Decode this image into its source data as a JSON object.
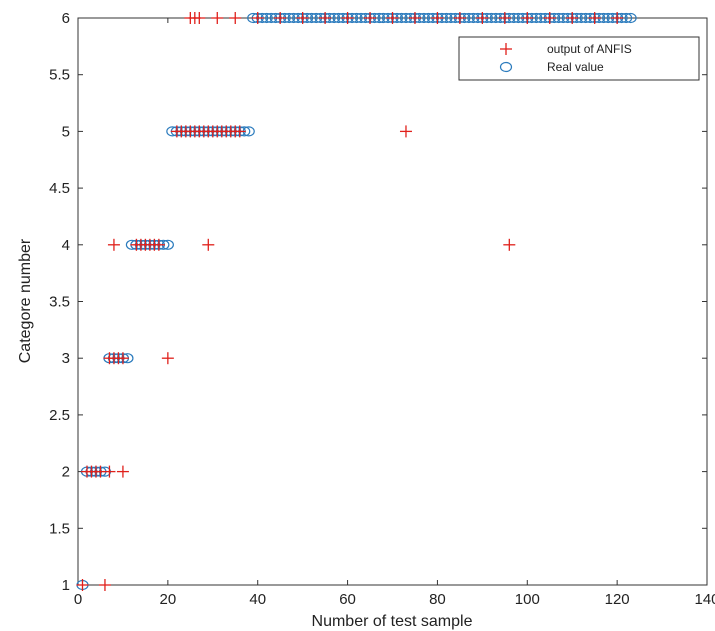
{
  "chart_data": {
    "type": "scatter",
    "title": "",
    "xlabel": "Number of test sample",
    "ylabel": "Categore number",
    "xlim": [
      0,
      140
    ],
    "ylim": [
      1,
      6
    ],
    "xticks": [
      0,
      20,
      40,
      60,
      80,
      100,
      120,
      140
    ],
    "yticks": [
      1,
      1.5,
      2,
      2.5,
      3,
      3.5,
      4,
      4.5,
      5,
      5.5,
      6
    ],
    "grid": false,
    "legend_position": "top-right",
    "series": [
      {
        "name": "output of ANFIS",
        "marker": "plus",
        "color": "#e0201b",
        "points": [
          [
            1,
            1
          ],
          [
            6,
            1
          ],
          [
            2,
            2
          ],
          [
            3,
            2
          ],
          [
            4,
            2
          ],
          [
            5,
            2
          ],
          [
            7,
            2
          ],
          [
            10,
            2
          ],
          [
            7,
            3
          ],
          [
            8,
            3
          ],
          [
            9,
            3
          ],
          [
            10,
            3
          ],
          [
            20,
            3
          ],
          [
            8,
            4
          ],
          [
            13,
            4
          ],
          [
            14,
            4
          ],
          [
            15,
            4
          ],
          [
            16,
            4
          ],
          [
            17,
            4
          ],
          [
            18,
            4
          ],
          [
            29,
            4
          ],
          [
            96,
            4
          ],
          [
            22,
            5
          ],
          [
            23,
            5
          ],
          [
            24,
            5
          ],
          [
            25,
            5
          ],
          [
            26,
            5
          ],
          [
            27,
            5
          ],
          [
            28,
            5
          ],
          [
            29,
            5
          ],
          [
            30,
            5
          ],
          [
            31,
            5
          ],
          [
            32,
            5
          ],
          [
            33,
            5
          ],
          [
            34,
            5
          ],
          [
            35,
            5
          ],
          [
            36,
            5
          ],
          [
            73,
            5
          ],
          [
            25,
            6
          ],
          [
            26,
            6
          ],
          [
            27,
            6
          ],
          [
            31,
            6
          ],
          [
            35,
            6
          ],
          [
            40,
            6
          ],
          [
            45,
            6
          ],
          [
            50,
            6
          ],
          [
            55,
            6
          ],
          [
            60,
            6
          ],
          [
            65,
            6
          ],
          [
            70,
            6
          ],
          [
            75,
            6
          ],
          [
            80,
            6
          ],
          [
            85,
            6
          ],
          [
            90,
            6
          ],
          [
            95,
            6
          ],
          [
            100,
            6
          ],
          [
            105,
            6
          ],
          [
            110,
            6
          ],
          [
            115,
            6
          ],
          [
            120,
            6
          ]
        ]
      },
      {
        "name": "Real value",
        "marker": "circle",
        "color": "#2b7bbd",
        "points": [
          [
            1,
            1
          ],
          [
            2,
            2
          ],
          [
            3,
            2
          ],
          [
            4,
            2
          ],
          [
            5,
            2
          ],
          [
            6,
            2
          ],
          [
            7,
            3
          ],
          [
            8,
            3
          ],
          [
            9,
            3
          ],
          [
            10,
            3
          ],
          [
            11,
            3
          ],
          [
            12,
            4
          ],
          [
            13,
            4
          ],
          [
            14,
            4
          ],
          [
            15,
            4
          ],
          [
            16,
            4
          ],
          [
            17,
            4
          ],
          [
            18,
            4
          ],
          [
            19,
            4
          ],
          [
            20,
            4
          ],
          [
            21,
            5
          ],
          [
            22,
            5
          ],
          [
            23,
            5
          ],
          [
            24,
            5
          ],
          [
            25,
            5
          ],
          [
            26,
            5
          ],
          [
            27,
            5
          ],
          [
            28,
            5
          ],
          [
            29,
            5
          ],
          [
            30,
            5
          ],
          [
            31,
            5
          ],
          [
            32,
            5
          ],
          [
            33,
            5
          ],
          [
            34,
            5
          ],
          [
            35,
            5
          ],
          [
            36,
            5
          ],
          [
            37,
            5
          ],
          [
            38,
            5
          ],
          [
            39,
            6
          ],
          [
            40,
            6
          ],
          [
            41,
            6
          ],
          [
            42,
            6
          ],
          [
            43,
            6
          ],
          [
            44,
            6
          ],
          [
            45,
            6
          ],
          [
            46,
            6
          ],
          [
            47,
            6
          ],
          [
            48,
            6
          ],
          [
            49,
            6
          ],
          [
            50,
            6
          ],
          [
            51,
            6
          ],
          [
            52,
            6
          ],
          [
            53,
            6
          ],
          [
            54,
            6
          ],
          [
            55,
            6
          ],
          [
            56,
            6
          ],
          [
            57,
            6
          ],
          [
            58,
            6
          ],
          [
            59,
            6
          ],
          [
            60,
            6
          ],
          [
            61,
            6
          ],
          [
            62,
            6
          ],
          [
            63,
            6
          ],
          [
            64,
            6
          ],
          [
            65,
            6
          ],
          [
            66,
            6
          ],
          [
            67,
            6
          ],
          [
            68,
            6
          ],
          [
            69,
            6
          ],
          [
            70,
            6
          ],
          [
            71,
            6
          ],
          [
            72,
            6
          ],
          [
            73,
            6
          ],
          [
            74,
            6
          ],
          [
            75,
            6
          ],
          [
            76,
            6
          ],
          [
            77,
            6
          ],
          [
            78,
            6
          ],
          [
            79,
            6
          ],
          [
            80,
            6
          ],
          [
            81,
            6
          ],
          [
            82,
            6
          ],
          [
            83,
            6
          ],
          [
            84,
            6
          ],
          [
            85,
            6
          ],
          [
            86,
            6
          ],
          [
            87,
            6
          ],
          [
            88,
            6
          ],
          [
            89,
            6
          ],
          [
            90,
            6
          ],
          [
            91,
            6
          ],
          [
            92,
            6
          ],
          [
            93,
            6
          ],
          [
            94,
            6
          ],
          [
            95,
            6
          ],
          [
            96,
            6
          ],
          [
            97,
            6
          ],
          [
            98,
            6
          ],
          [
            99,
            6
          ],
          [
            100,
            6
          ],
          [
            101,
            6
          ],
          [
            102,
            6
          ],
          [
            103,
            6
          ],
          [
            104,
            6
          ],
          [
            105,
            6
          ],
          [
            106,
            6
          ],
          [
            107,
            6
          ],
          [
            108,
            6
          ],
          [
            109,
            6
          ],
          [
            110,
            6
          ],
          [
            111,
            6
          ],
          [
            112,
            6
          ],
          [
            113,
            6
          ],
          [
            114,
            6
          ],
          [
            115,
            6
          ],
          [
            116,
            6
          ],
          [
            117,
            6
          ],
          [
            118,
            6
          ],
          [
            119,
            6
          ],
          [
            120,
            6
          ],
          [
            121,
            6
          ],
          [
            122,
            6
          ],
          [
            123,
            6
          ]
        ]
      }
    ]
  }
}
